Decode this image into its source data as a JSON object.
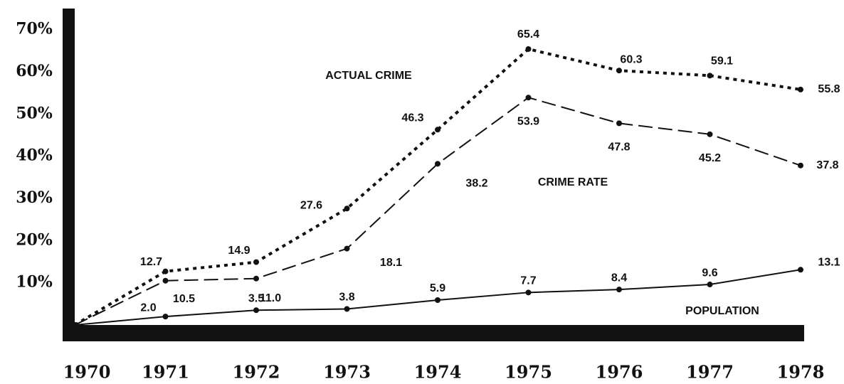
{
  "chart_data": {
    "type": "line",
    "categories": [
      "1970",
      "1971",
      "1972",
      "1973",
      "1974",
      "1975",
      "1976",
      "1977",
      "1978"
    ],
    "series": [
      {
        "name": "ACTUAL CRIME",
        "color": "#111111",
        "style": "dotted",
        "values": [
          0,
          12.7,
          14.9,
          27.6,
          46.3,
          65.4,
          60.3,
          59.1,
          55.8
        ],
        "value_labels": [
          null,
          "12.7",
          "14.9",
          "27.6",
          "46.3",
          "65.4",
          "60.3",
          "59.1",
          "55.8"
        ]
      },
      {
        "name": "CRIME RATE",
        "color": "#111111",
        "style": "dashed",
        "values": [
          0,
          10.5,
          11.0,
          18.1,
          38.2,
          53.9,
          47.8,
          45.2,
          37.8
        ],
        "value_labels": [
          null,
          "10.5",
          "11.0",
          "18.1",
          "38.2",
          "53.9",
          "47.8",
          "45.2",
          "37.8"
        ]
      },
      {
        "name": "POPULATION",
        "color": "#111111",
        "style": "solid",
        "values": [
          0,
          2.0,
          3.5,
          3.8,
          5.9,
          7.7,
          8.4,
          9.6,
          13.1
        ],
        "value_labels": [
          null,
          "2.0",
          "3.5",
          "3.8",
          "5.9",
          "7.7",
          "8.4",
          "9.6",
          "13.1"
        ]
      }
    ],
    "ylim": [
      0,
      75
    ],
    "yticks": [
      {
        "value": 10,
        "label": "10%"
      },
      {
        "value": 20,
        "label": "20%"
      },
      {
        "value": 30,
        "label": "30%"
      },
      {
        "value": 40,
        "label": "40%"
      },
      {
        "value": 50,
        "label": "50%"
      },
      {
        "value": 60,
        "label": "60%"
      },
      {
        "value": 70,
        "label": "70%"
      }
    ],
    "grid": false
  }
}
